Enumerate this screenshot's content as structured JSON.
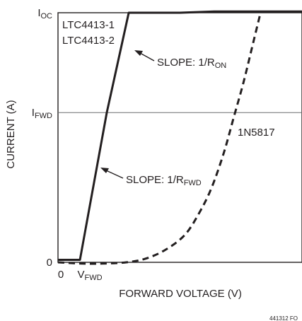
{
  "chart_data": {
    "type": "line",
    "title": "",
    "xlabel": "FORWARD VOLTAGE (V)",
    "ylabel": "CURRENT (A)",
    "xlim": [
      0,
      1
    ],
    "ylim": [
      0,
      1
    ],
    "grid": false,
    "y_ticks": [
      {
        "label": "I",
        "sub": "OC",
        "value": 1.0
      },
      {
        "label": "I",
        "sub": "FWD",
        "value": 0.6
      },
      {
        "label": "0",
        "sub": "",
        "value": 0
      }
    ],
    "x_ticks": [
      {
        "label": "0",
        "sub": "",
        "value": 0
      },
      {
        "label": "V",
        "sub": "FWD",
        "value": 0.09
      }
    ],
    "reference_line": {
      "y": 0.6
    },
    "series": [
      {
        "name": "",
        "style": "solid",
        "x": [
          0,
          0.09,
          0.2,
          0.29,
          0.5,
          0.64,
          1.0
        ],
        "y": [
          0.01,
          0.01,
          0.6,
          1.0,
          1.0,
          1.005,
          1.005
        ]
      },
      {
        "name": "1N5817",
        "style": "dashed",
        "x": [
          0,
          0.1,
          0.18,
          0.28,
          0.36,
          0.44,
          0.52,
          0.58,
          0.63,
          0.68,
          0.72,
          0.76,
          0.8,
          0.83
        ],
        "y": [
          0,
          -0.005,
          -0.005,
          0.0,
          0.015,
          0.05,
          0.11,
          0.2,
          0.3,
          0.44,
          0.58,
          0.72,
          0.88,
          1.0
        ]
      }
    ],
    "legend_block": [
      "LTC4413-1",
      "LTC4413-2"
    ],
    "annotations": [
      {
        "text": "SLOPE: 1/R",
        "sub": "ON"
      },
      {
        "text": "SLOPE: 1/R",
        "sub": "FWD"
      },
      {
        "text": "1N5817",
        "sub": ""
      }
    ],
    "figure_id": "441312 FO"
  },
  "colors": {
    "ink": "#231f20",
    "grid": "#6d6e71",
    "background": "#ffffff"
  }
}
